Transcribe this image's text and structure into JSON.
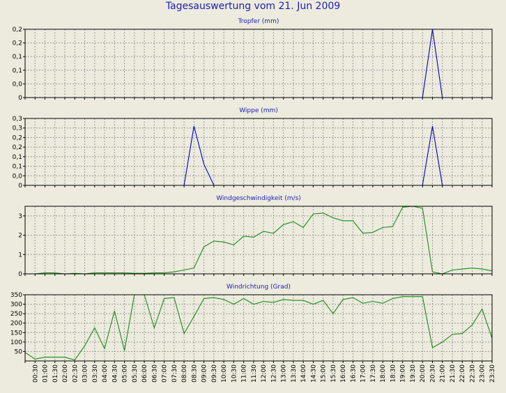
{
  "title": "Tagesauswertung vom 21. Jun 2009",
  "colors": {
    "title": "#1c1cb8",
    "background": "#ecebdd",
    "plot_bg": "#ecebdd",
    "grid": "#9a9a9a",
    "blue_series": "#0000c8",
    "green_series": "#1a8a1a"
  },
  "chart_data": [
    {
      "type": "line",
      "title": "Tropfer (mm)",
      "color": "#0000c8",
      "xlim": [
        0,
        47
      ],
      "ylim": [
        0,
        0.25
      ],
      "yticks": [
        0,
        0.05,
        0.1,
        0.15,
        0.2,
        0.25
      ],
      "yticklabels": [
        "0",
        "0,0",
        "0,1",
        "0,1",
        "0,2",
        "0,2"
      ],
      "grid": true,
      "points": [
        [
          0,
          0
        ],
        [
          40,
          0
        ],
        [
          41,
          0.25
        ],
        [
          42,
          0
        ],
        [
          47,
          0
        ]
      ]
    },
    {
      "type": "line",
      "title": "Wippe (mm)",
      "color": "#0000c8",
      "xlim": [
        0,
        47
      ],
      "ylim": [
        0,
        0.35
      ],
      "yticks": [
        0,
        0.05,
        0.1,
        0.15,
        0.2,
        0.25,
        0.3,
        0.35
      ],
      "yticklabels": [
        "0",
        "0,0",
        "0,1",
        "0,1",
        "0,2",
        "0,2",
        "0,3",
        "0,3"
      ],
      "grid": true,
      "points": [
        [
          0,
          0
        ],
        [
          16,
          0
        ],
        [
          17,
          0.31
        ],
        [
          18,
          0.11
        ],
        [
          19,
          0
        ],
        [
          40,
          0
        ],
        [
          41,
          0.31
        ],
        [
          42,
          0
        ],
        [
          47,
          0
        ]
      ]
    },
    {
      "type": "line",
      "title": "Windgeschwindigkeit (m/s)",
      "color": "#1a8a1a",
      "xlim": [
        0,
        47
      ],
      "ylim": [
        0,
        3.5
      ],
      "yticks": [
        0,
        1,
        2,
        3
      ],
      "yticklabels": [
        "0",
        "1",
        "2",
        "3"
      ],
      "grid": true,
      "points": [
        [
          0,
          0
        ],
        [
          1,
          0
        ],
        [
          2,
          0.05
        ],
        [
          3,
          0.05
        ],
        [
          4,
          0
        ],
        [
          5,
          0.03
        ],
        [
          6,
          0
        ],
        [
          7,
          0.05
        ],
        [
          8,
          0.05
        ],
        [
          9,
          0.05
        ],
        [
          10,
          0.05
        ],
        [
          11,
          0.03
        ],
        [
          12,
          0.03
        ],
        [
          13,
          0.05
        ],
        [
          14,
          0.05
        ],
        [
          15,
          0.1
        ],
        [
          16,
          0.2
        ],
        [
          17,
          0.3
        ],
        [
          18,
          1.4
        ],
        [
          19,
          1.7
        ],
        [
          20,
          1.65
        ],
        [
          21,
          1.5
        ],
        [
          22,
          1.95
        ],
        [
          23,
          1.9
        ],
        [
          24,
          2.2
        ],
        [
          25,
          2.1
        ],
        [
          26,
          2.55
        ],
        [
          27,
          2.7
        ],
        [
          28,
          2.4
        ],
        [
          29,
          3.1
        ],
        [
          30,
          3.15
        ],
        [
          31,
          2.9
        ],
        [
          32,
          2.75
        ],
        [
          33,
          2.75
        ],
        [
          34,
          2.1
        ],
        [
          35,
          2.15
        ],
        [
          36,
          2.4
        ],
        [
          37,
          2.45
        ],
        [
          38,
          3.45
        ],
        [
          39,
          3.5
        ],
        [
          40,
          3.4
        ],
        [
          41,
          0.1
        ],
        [
          42,
          0
        ],
        [
          43,
          0.2
        ],
        [
          44,
          0.25
        ],
        [
          45,
          0.3
        ],
        [
          46,
          0.25
        ],
        [
          47,
          0.15
        ]
      ]
    },
    {
      "type": "line",
      "title": "Windrichtung (Grad)",
      "color": "#1a8a1a",
      "xlim": [
        0,
        47
      ],
      "ylim": [
        0,
        350
      ],
      "yticks": [
        50,
        100,
        150,
        200,
        250,
        300,
        350
      ],
      "yticklabels": [
        "50",
        "100",
        "150",
        "200",
        "250",
        "300",
        "350"
      ],
      "grid": true,
      "x_tick_labels": [
        "00:30",
        "01:00",
        "01:30",
        "02:00",
        "02:30",
        "03:00",
        "03:30",
        "04:00",
        "04:30",
        "05:00",
        "05:30",
        "06:00",
        "06:30",
        "07:00",
        "07:30",
        "08:00",
        "08:30",
        "09:00",
        "09:30",
        "10:00",
        "10:30",
        "11:00",
        "11:30",
        "12:00",
        "12:30",
        "13:00",
        "13:30",
        "14:00",
        "14:30",
        "15:00",
        "15:30",
        "16:00",
        "16:30",
        "17:00",
        "17:30",
        "18:00",
        "18:30",
        "19:00",
        "19:30",
        "20:00",
        "20:30",
        "21:00",
        "21:30",
        "22:00",
        "22:30",
        "23:00",
        "23:30"
      ],
      "points": [
        [
          0,
          45
        ],
        [
          1,
          10
        ],
        [
          2,
          20
        ],
        [
          3,
          20
        ],
        [
          4,
          20
        ],
        [
          5,
          5
        ],
        [
          6,
          80
        ],
        [
          7,
          175
        ],
        [
          8,
          65
        ],
        [
          9,
          265
        ],
        [
          10,
          55
        ],
        [
          11,
          350
        ],
        [
          12,
          350
        ],
        [
          13,
          175
        ],
        [
          14,
          330
        ],
        [
          15,
          335
        ],
        [
          16,
          145
        ],
        [
          17,
          235
        ],
        [
          18,
          330
        ],
        [
          19,
          335
        ],
        [
          20,
          325
        ],
        [
          21,
          300
        ],
        [
          22,
          330
        ],
        [
          23,
          300
        ],
        [
          24,
          315
        ],
        [
          25,
          310
        ],
        [
          26,
          325
        ],
        [
          27,
          320
        ],
        [
          28,
          320
        ],
        [
          29,
          300
        ],
        [
          30,
          320
        ],
        [
          31,
          250
        ],
        [
          32,
          325
        ],
        [
          33,
          335
        ],
        [
          34,
          305
        ],
        [
          35,
          315
        ],
        [
          36,
          305
        ],
        [
          37,
          330
        ],
        [
          38,
          340
        ],
        [
          39,
          340
        ],
        [
          40,
          340
        ],
        [
          41,
          70
        ],
        [
          42,
          100
        ],
        [
          43,
          140
        ],
        [
          44,
          145
        ],
        [
          45,
          190
        ],
        [
          46,
          275
        ],
        [
          47,
          120
        ]
      ]
    }
  ]
}
